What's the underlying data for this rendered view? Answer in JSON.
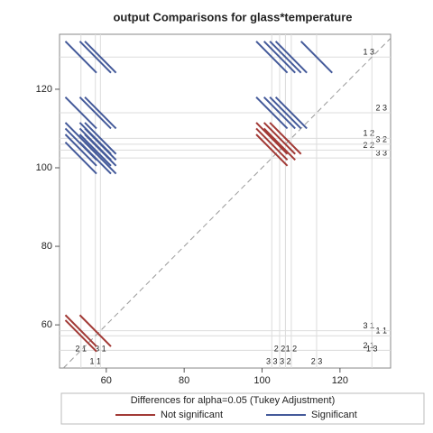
{
  "chart_data": {
    "type": "diffogram",
    "title": "output Comparisons for glass*temperature",
    "levels": [
      "2 1",
      "1 1",
      "3 1",
      "3 3",
      "2 2",
      "3 2",
      "1 2",
      "2 3",
      "1 3"
    ],
    "means": [
      53.5,
      57.2,
      58.5,
      102.5,
      104.5,
      106.0,
      107.5,
      114.0,
      128.2
    ],
    "halfwidth": 4,
    "xlim": [
      48,
      133
    ],
    "ylim": [
      49,
      134
    ],
    "xticks": [
      60,
      80,
      100,
      120
    ],
    "yticks": [
      60,
      80,
      100,
      120
    ],
    "legend_title": "Differences for alpha=0.05 (Tukey Adjustment)",
    "series": [
      {
        "name": "Not significant",
        "color": "#a23a36",
        "pairs": [
          [
            "2 1",
            "1 1"
          ],
          [
            "2 1",
            "3 1"
          ],
          [
            "1 1",
            "3 1"
          ],
          [
            "3 3",
            "2 2"
          ],
          [
            "3 3",
            "3 2"
          ],
          [
            "3 3",
            "1 2"
          ],
          [
            "2 2",
            "3 2"
          ],
          [
            "2 2",
            "1 2"
          ],
          [
            "3 2",
            "1 2"
          ]
        ]
      },
      {
        "name": "Significant",
        "color": "#445a9a",
        "pairs": [
          [
            "2 1",
            "3 3"
          ],
          [
            "2 1",
            "2 2"
          ],
          [
            "2 1",
            "3 2"
          ],
          [
            "2 1",
            "1 2"
          ],
          [
            "2 1",
            "2 3"
          ],
          [
            "2 1",
            "1 3"
          ],
          [
            "1 1",
            "3 3"
          ],
          [
            "1 1",
            "2 2"
          ],
          [
            "1 1",
            "3 2"
          ],
          [
            "1 1",
            "1 2"
          ],
          [
            "1 1",
            "2 3"
          ],
          [
            "1 1",
            "1 3"
          ],
          [
            "3 1",
            "3 3"
          ],
          [
            "3 1",
            "2 2"
          ],
          [
            "3 1",
            "3 2"
          ],
          [
            "3 1",
            "1 2"
          ],
          [
            "3 1",
            "2 3"
          ],
          [
            "3 1",
            "1 3"
          ],
          [
            "3 3",
            "2 3"
          ],
          [
            "2 2",
            "2 3"
          ],
          [
            "3 2",
            "2 3"
          ],
          [
            "1 2",
            "2 3"
          ],
          [
            "3 3",
            "1 3"
          ],
          [
            "2 2",
            "1 3"
          ],
          [
            "3 2",
            "1 3"
          ],
          [
            "1 2",
            "1 3"
          ],
          [
            "2 3",
            "1 3"
          ]
        ]
      }
    ]
  }
}
